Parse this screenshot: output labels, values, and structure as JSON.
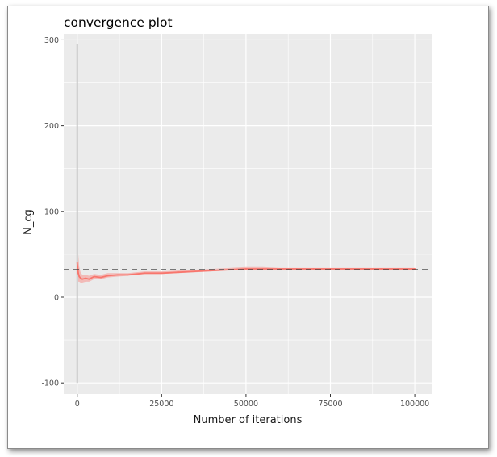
{
  "chart_data": {
    "type": "line",
    "title": "convergence plot",
    "xlabel": "Number of iterations",
    "ylabel": "N_cg",
    "xlim": [
      -4000,
      105000
    ],
    "ylim": [
      -113,
      307
    ],
    "x_ticks": [
      0,
      25000,
      50000,
      75000,
      100000
    ],
    "x_tick_labels": [
      "0",
      "25000",
      "50000",
      "75000",
      "100000"
    ],
    "y_ticks": [
      -100,
      0,
      100,
      200,
      300
    ],
    "y_tick_labels": [
      "-100",
      "0",
      "100",
      "200",
      "300"
    ],
    "grid": true,
    "reference_line": {
      "y": 32,
      "style": "dashed",
      "color": "#333333"
    },
    "series": [
      {
        "color": "#f8766d",
        "x": [
          0,
          300,
          600,
          1000,
          1500,
          2500,
          3500,
          5000,
          7000,
          9000,
          12000,
          15000,
          20000,
          25000,
          30000,
          35000,
          40000,
          45000,
          50000,
          55000,
          60000,
          65000,
          70000,
          75000,
          80000,
          85000,
          90000,
          95000,
          100000
        ],
        "y": [
          40,
          28,
          24,
          22,
          21,
          22,
          21,
          24,
          23,
          25,
          26,
          26,
          28,
          28,
          29,
          30,
          31,
          32,
          33,
          33,
          33,
          33,
          33,
          33,
          33,
          33,
          33,
          33,
          33
        ],
        "band_low": [
          -100,
          18,
          18,
          17,
          17,
          18,
          18,
          21,
          21,
          23,
          24,
          25,
          27,
          27,
          28,
          29,
          30,
          31,
          32,
          32,
          32,
          32,
          32,
          32,
          32,
          32,
          32,
          32,
          32
        ],
        "band_high": [
          295,
          50,
          35,
          29,
          26,
          26,
          25,
          27,
          26,
          28,
          28,
          28,
          30,
          30,
          31,
          32,
          33,
          34,
          35,
          35,
          34,
          34,
          34,
          34,
          34,
          34,
          34,
          34,
          34
        ]
      }
    ],
    "colors": {
      "panel": "#ebebeb",
      "grid": "#ffffff",
      "band": "#f4a9a6",
      "spike": "#c8c8c8"
    }
  }
}
